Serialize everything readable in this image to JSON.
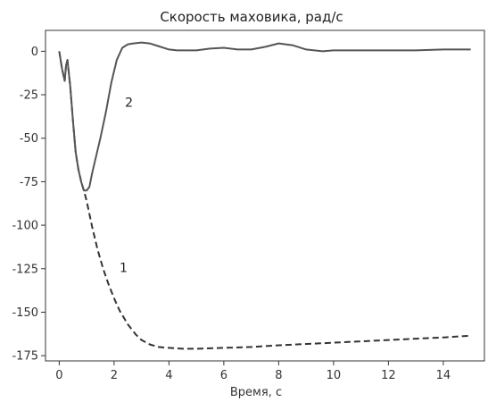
{
  "chart_data": {
    "type": "line",
    "title": "Скорость маховика, рад/с",
    "xlabel": "Время, с",
    "ylabel": "",
    "xlim": [
      -0.5,
      15.5
    ],
    "ylim": [
      -178,
      12
    ],
    "xticks": [
      0,
      2,
      4,
      6,
      8,
      10,
      12,
      14
    ],
    "yticks": [
      0,
      -25,
      -50,
      -75,
      -100,
      -125,
      -150,
      -175
    ],
    "grid": false,
    "series": [
      {
        "name": "1",
        "style": "dashed",
        "color": "#333333",
        "x": [
          0,
          0.1,
          0.2,
          0.25,
          0.3,
          0.4,
          0.5,
          0.6,
          0.7,
          0.8,
          0.9,
          1.0,
          1.2,
          1.4,
          1.6,
          1.8,
          2.0,
          2.2,
          2.5,
          2.8,
          3.0,
          3.3,
          3.6,
          4.0,
          4.5,
          5.0,
          6.0,
          7.0,
          8.0,
          10.0,
          12.0,
          14.0,
          15.0
        ],
        "y": [
          0,
          -10,
          -17,
          -8,
          -5,
          -20,
          -40,
          -58,
          -68,
          -75,
          -80,
          -86,
          -101,
          -114,
          -125,
          -134,
          -142,
          -149,
          -157,
          -163,
          -166,
          -168.5,
          -170,
          -170.5,
          -171,
          -171,
          -170.5,
          -170,
          -169,
          -167.5,
          -166,
          -164.5,
          -163.5
        ]
      },
      {
        "name": "2",
        "style": "solid",
        "color": "#555555",
        "x": [
          0,
          0.1,
          0.2,
          0.25,
          0.3,
          0.4,
          0.5,
          0.6,
          0.7,
          0.8,
          0.9,
          1.0,
          1.1,
          1.2,
          1.35,
          1.5,
          1.7,
          1.9,
          2.1,
          2.3,
          2.5,
          2.7,
          3.0,
          3.3,
          3.6,
          4.0,
          4.3,
          4.6,
          5.0,
          5.5,
          6.0,
          6.5,
          7.0,
          7.5,
          8.0,
          8.5,
          9.0,
          9.3,
          9.6,
          10.0,
          11.0,
          12.0,
          13.0,
          14.0,
          15.0
        ],
        "y": [
          0,
          -10,
          -17,
          -8,
          -5,
          -20,
          -40,
          -58,
          -68,
          -75,
          -80,
          -80,
          -78,
          -70,
          -60,
          -50,
          -35,
          -18,
          -5,
          2,
          4,
          4.5,
          5,
          4.5,
          3,
          1,
          0.5,
          0.5,
          0.5,
          1.5,
          2,
          1,
          1,
          2.5,
          4.5,
          3.5,
          1,
          0.5,
          0,
          0.5,
          0.5,
          0.5,
          0.5,
          1,
          1
        ]
      }
    ],
    "annotations": [
      {
        "text": "1",
        "x": 2.2,
        "y": -127
      },
      {
        "text": "2",
        "x": 2.4,
        "y": -32
      }
    ]
  }
}
